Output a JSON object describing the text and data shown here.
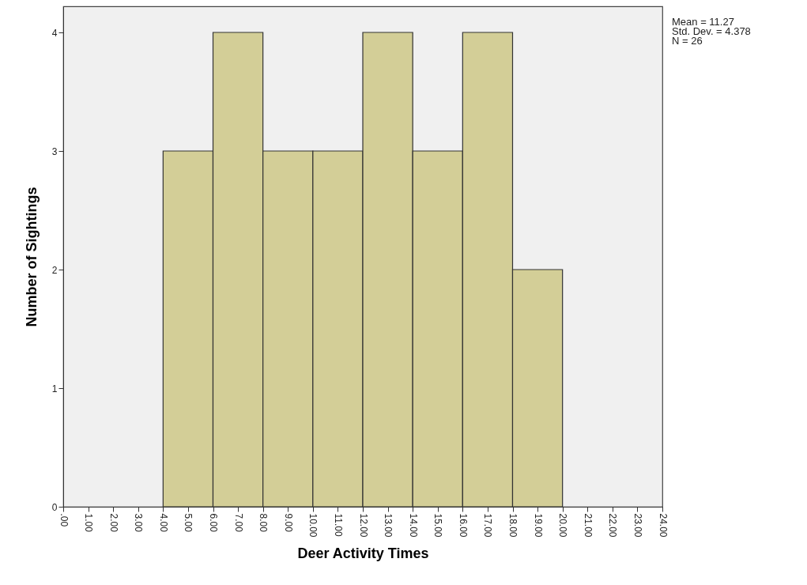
{
  "chart_data": {
    "type": "histogram",
    "xlabel": "Deer Activity Times",
    "ylabel": "Number of Sightings",
    "bins": [
      4,
      6,
      8,
      10,
      12,
      14,
      16,
      18,
      20
    ],
    "values": [
      3,
      4,
      3,
      3,
      4,
      3,
      4,
      2
    ],
    "color": "#d3ce97",
    "xlim": [
      0,
      24
    ],
    "xticks": [
      {
        "value": 0,
        "label": ".00"
      },
      {
        "value": 1,
        "label": "1.00"
      },
      {
        "value": 2,
        "label": "2.00"
      },
      {
        "value": 3,
        "label": "3.00"
      },
      {
        "value": 4,
        "label": "4.00"
      },
      {
        "value": 5,
        "label": "5.00"
      },
      {
        "value": 6,
        "label": "6.00"
      },
      {
        "value": 7,
        "label": "7.00"
      },
      {
        "value": 8,
        "label": "8.00"
      },
      {
        "value": 9,
        "label": "9.00"
      },
      {
        "value": 10,
        "label": "10.00"
      },
      {
        "value": 11,
        "label": "11.00"
      },
      {
        "value": 12,
        "label": "12.00"
      },
      {
        "value": 13,
        "label": "13.00"
      },
      {
        "value": 14,
        "label": "14.00"
      },
      {
        "value": 15,
        "label": "15.00"
      },
      {
        "value": 16,
        "label": "16.00"
      },
      {
        "value": 17,
        "label": "17.00"
      },
      {
        "value": 18,
        "label": "18.00"
      },
      {
        "value": 19,
        "label": "19.00"
      },
      {
        "value": 20,
        "label": "20.00"
      },
      {
        "value": 21,
        "label": "21.00"
      },
      {
        "value": 22,
        "label": "22.00"
      },
      {
        "value": 23,
        "label": "23.00"
      },
      {
        "value": 24,
        "label": "24.00"
      }
    ],
    "ylim": [
      0,
      4.22
    ],
    "yticks": [
      0,
      1,
      2,
      3,
      4
    ],
    "grid": false,
    "annotations": [
      "Mean = 11.27",
      "Std. Dev. = 4.378",
      "N = 26"
    ]
  }
}
